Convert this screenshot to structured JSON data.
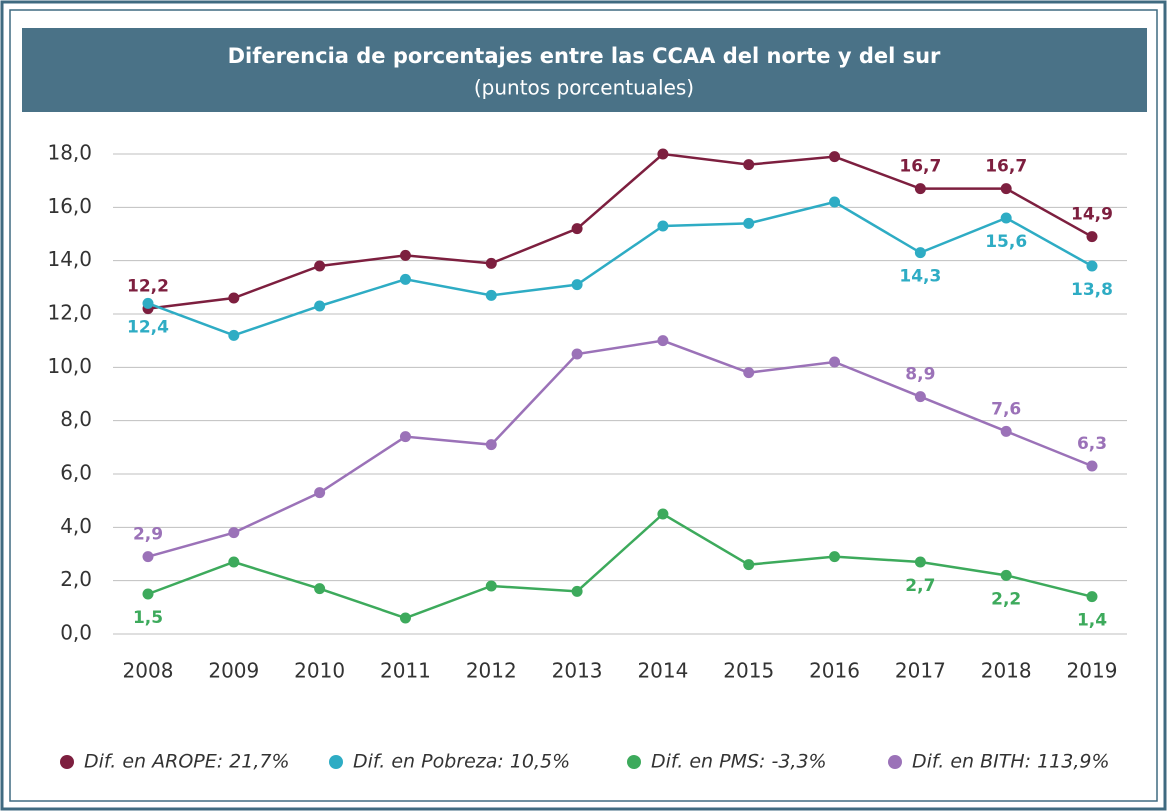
{
  "chart_data": {
    "type": "line",
    "title": "Diferencia de porcentajes entre las CCAA del norte y del sur",
    "subtitle": "(puntos porcentuales)",
    "categories": [
      "2008",
      "2009",
      "2010",
      "2011",
      "2012",
      "2013",
      "2014",
      "2015",
      "2016",
      "2017",
      "2018",
      "2019"
    ],
    "series": [
      {
        "name": "Dif. en AROPE: 21,7%",
        "color": "#7d1f3f",
        "values": [
          12.2,
          12.6,
          13.8,
          14.2,
          13.9,
          15.2,
          18.0,
          17.6,
          17.9,
          16.7,
          16.7,
          14.9
        ],
        "value_labels": [
          "12,2",
          null,
          null,
          null,
          null,
          null,
          null,
          null,
          null,
          "16,7",
          "16,7",
          "14,9"
        ]
      },
      {
        "name": "Dif. en Pobreza: 10,5%",
        "color": "#2eacc4",
        "values": [
          12.4,
          11.2,
          12.3,
          13.3,
          12.7,
          13.1,
          15.3,
          15.4,
          16.2,
          14.3,
          15.6,
          13.8
        ],
        "value_labels": [
          "12,4",
          null,
          null,
          null,
          null,
          null,
          null,
          null,
          null,
          "14,3",
          "15,6",
          "13,8"
        ]
      },
      {
        "name": "Dif. en PMS: -3,3%",
        "color": "#3daa5c",
        "values": [
          1.5,
          2.7,
          1.7,
          0.6,
          1.8,
          1.6,
          4.5,
          2.6,
          2.9,
          2.7,
          2.2,
          1.4
        ],
        "value_labels": [
          "1,5",
          null,
          null,
          null,
          null,
          null,
          null,
          null,
          null,
          "2,7",
          "2,2",
          "1,4"
        ]
      },
      {
        "name": "Dif. en BITH: 113,9%",
        "color": "#9b72b8",
        "values": [
          2.9,
          3.8,
          5.3,
          7.4,
          7.1,
          10.5,
          11.0,
          9.8,
          10.2,
          8.9,
          7.6,
          6.3
        ],
        "value_labels": [
          "2,9",
          null,
          null,
          null,
          null,
          null,
          null,
          null,
          null,
          "8,9",
          "7,6",
          "6,3"
        ]
      }
    ],
    "ylim": [
      0,
      18
    ],
    "yticks": [
      {
        "value": 0,
        "label": "0,0"
      },
      {
        "value": 2,
        "label": "2,0"
      },
      {
        "value": 4,
        "label": "4,0"
      },
      {
        "value": 6,
        "label": "6,0"
      },
      {
        "value": 8,
        "label": "8,0"
      },
      {
        "value": 10,
        "label": "10,0"
      },
      {
        "value": 12,
        "label": "12,0"
      },
      {
        "value": 14,
        "label": "14,0"
      },
      {
        "value": 16,
        "label": "16,0"
      },
      {
        "value": 18,
        "label": "18,0"
      }
    ],
    "grid": true
  }
}
